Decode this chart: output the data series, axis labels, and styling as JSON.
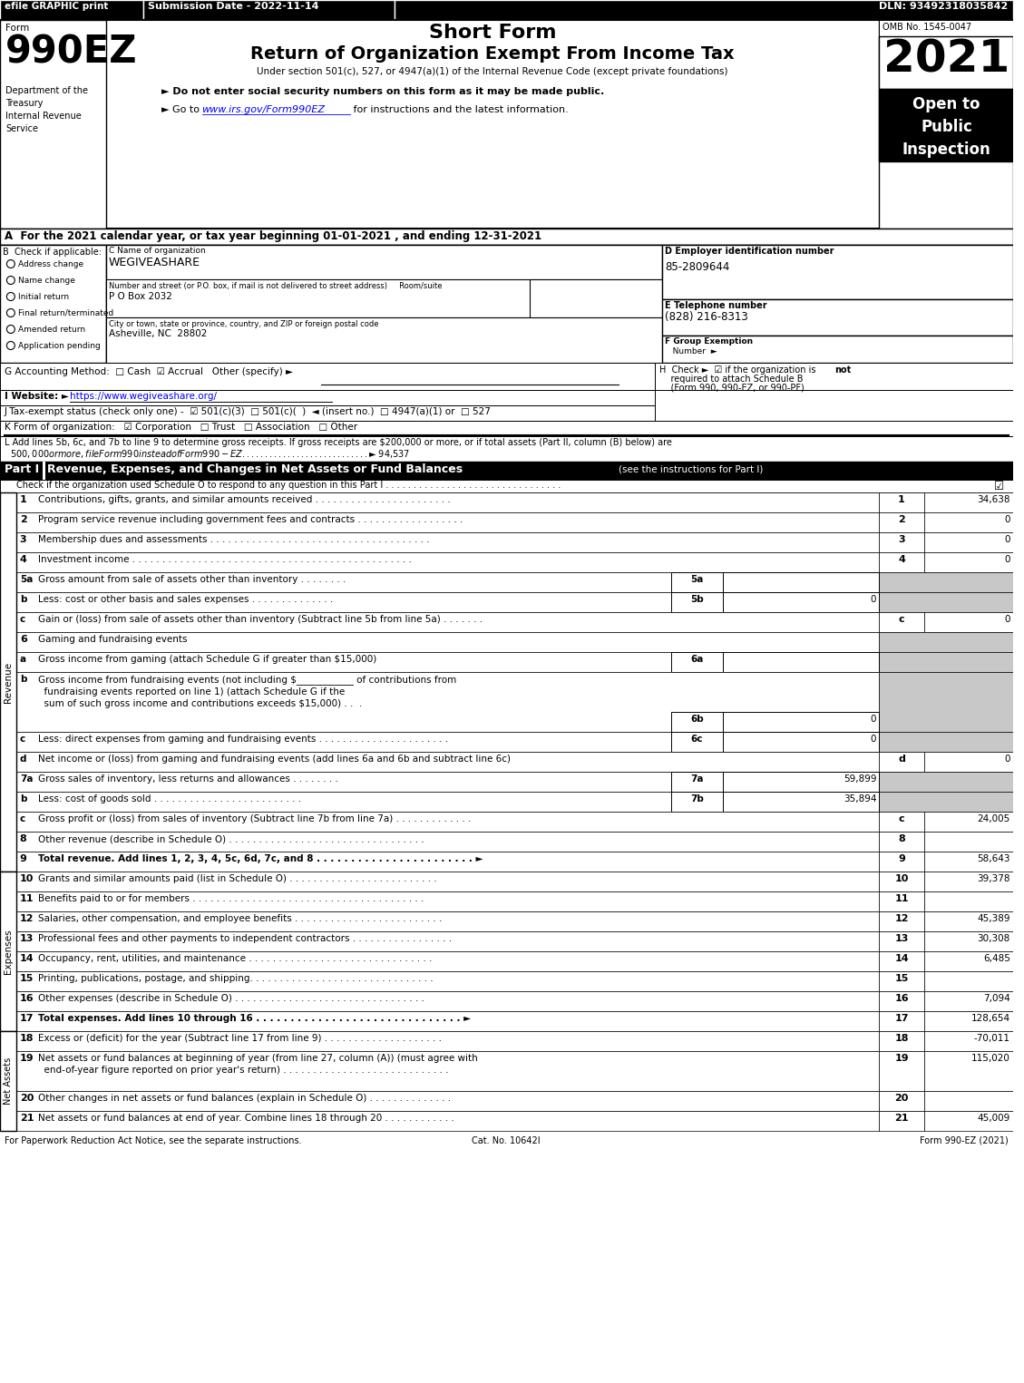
{
  "efile_text": "efile GRAPHIC print",
  "submission_date": "Submission Date - 2022-11-14",
  "dln": "DLN: 93492318035842",
  "form_label": "Form",
  "form_number": "990EZ",
  "short_form": "Short Form",
  "main_title": "Return of Organization Exempt From Income Tax",
  "subtitle": "Under section 501(c), 527, or 4947(a)(1) of the Internal Revenue Code (except private foundations)",
  "bullet1": "► Do not enter social security numbers on this form as it may be made public.",
  "bullet2_prefix": "► Go to ",
  "bullet2_url": "www.irs.gov/Form990EZ",
  "bullet2_suffix": " for instructions and the latest information.",
  "dept_text": "Department of the\nTreasury\nInternal Revenue\nService",
  "omb": "OMB No. 1545-0047",
  "year": "2021",
  "open_to": "Open to\nPublic\nInspection",
  "section_a": "A  For the 2021 calendar year, or tax year beginning 01-01-2021 , and ending 12-31-2021",
  "check_applicable": "B  Check if applicable:",
  "checkboxes": [
    "Address change",
    "Name change",
    "Initial return",
    "Final return/terminated",
    "Amended return",
    "Application pending"
  ],
  "org_name_label": "C Name of organization",
  "org_name": "WEGIVEASHARE",
  "address_label": "Number and street (or P.O. box, if mail is not delivered to street address)     Room/suite",
  "address": "P O Box 2032",
  "city_label": "City or town, state or province, country, and ZIP or foreign postal code",
  "city": "Asheville, NC  28802",
  "ein_label": "D Employer identification number",
  "ein": "85-2809644",
  "phone_label": "E Telephone number",
  "phone": "(828) 216-8313",
  "group_label1": "F Group Exemption",
  "group_label2": "   Number  ►",
  "acctg": "G Accounting Method:  □ Cash  ☑ Accrual   Other (specify) ►",
  "h_prefix": "H  Check ►  ☑ if the organization is ",
  "h_not": "not",
  "h_suffix1": "    required to attach Schedule B",
  "h_suffix2": "    (Form 990, 990-EZ, or 990-PF).",
  "website_label": "I Website: ►",
  "website_url": "https://www.wegiveashare.org/",
  "tax_exempt": "J Tax-exempt status (check only one) -  ☑ 501(c)(3)  □ 501(c)(  )  ◄ (insert no.)  □ 4947(a)(1) or  □ 527",
  "form_org": "K Form of organization:   ☑ Corporation   □ Trust   □ Association   □ Other",
  "section_l1": "L Add lines 5b, 6c, and 7b to line 9 to determine gross receipts. If gross receipts are $200,000 or more, or if total assets (Part II, column (B) below) are",
  "section_l2": "  $500,000 or more, file Form 990 instead of Form 990-EZ . . . . . . . . . . . . . . . . . . . . . . . . . . . .  ► $ 94,537",
  "part1_label": "Part I",
  "part1_title": "Revenue, Expenses, and Changes in Net Assets or Fund Balances",
  "part1_inst": "(see the instructions for Part I)",
  "part1_check": "Check if the organization used Schedule O to respond to any question in this Part I . . . . . . . . . . . . . . . . . . . . . . . . . . . . . . . .",
  "footer_left": "For Paperwork Reduction Act Notice, see the separate instructions.",
  "footer_cat": "Cat. No. 10642I",
  "footer_right": "Form 990-EZ (2021)",
  "gray": "#c8c8c8",
  "black": "#000000",
  "white": "#ffffff"
}
